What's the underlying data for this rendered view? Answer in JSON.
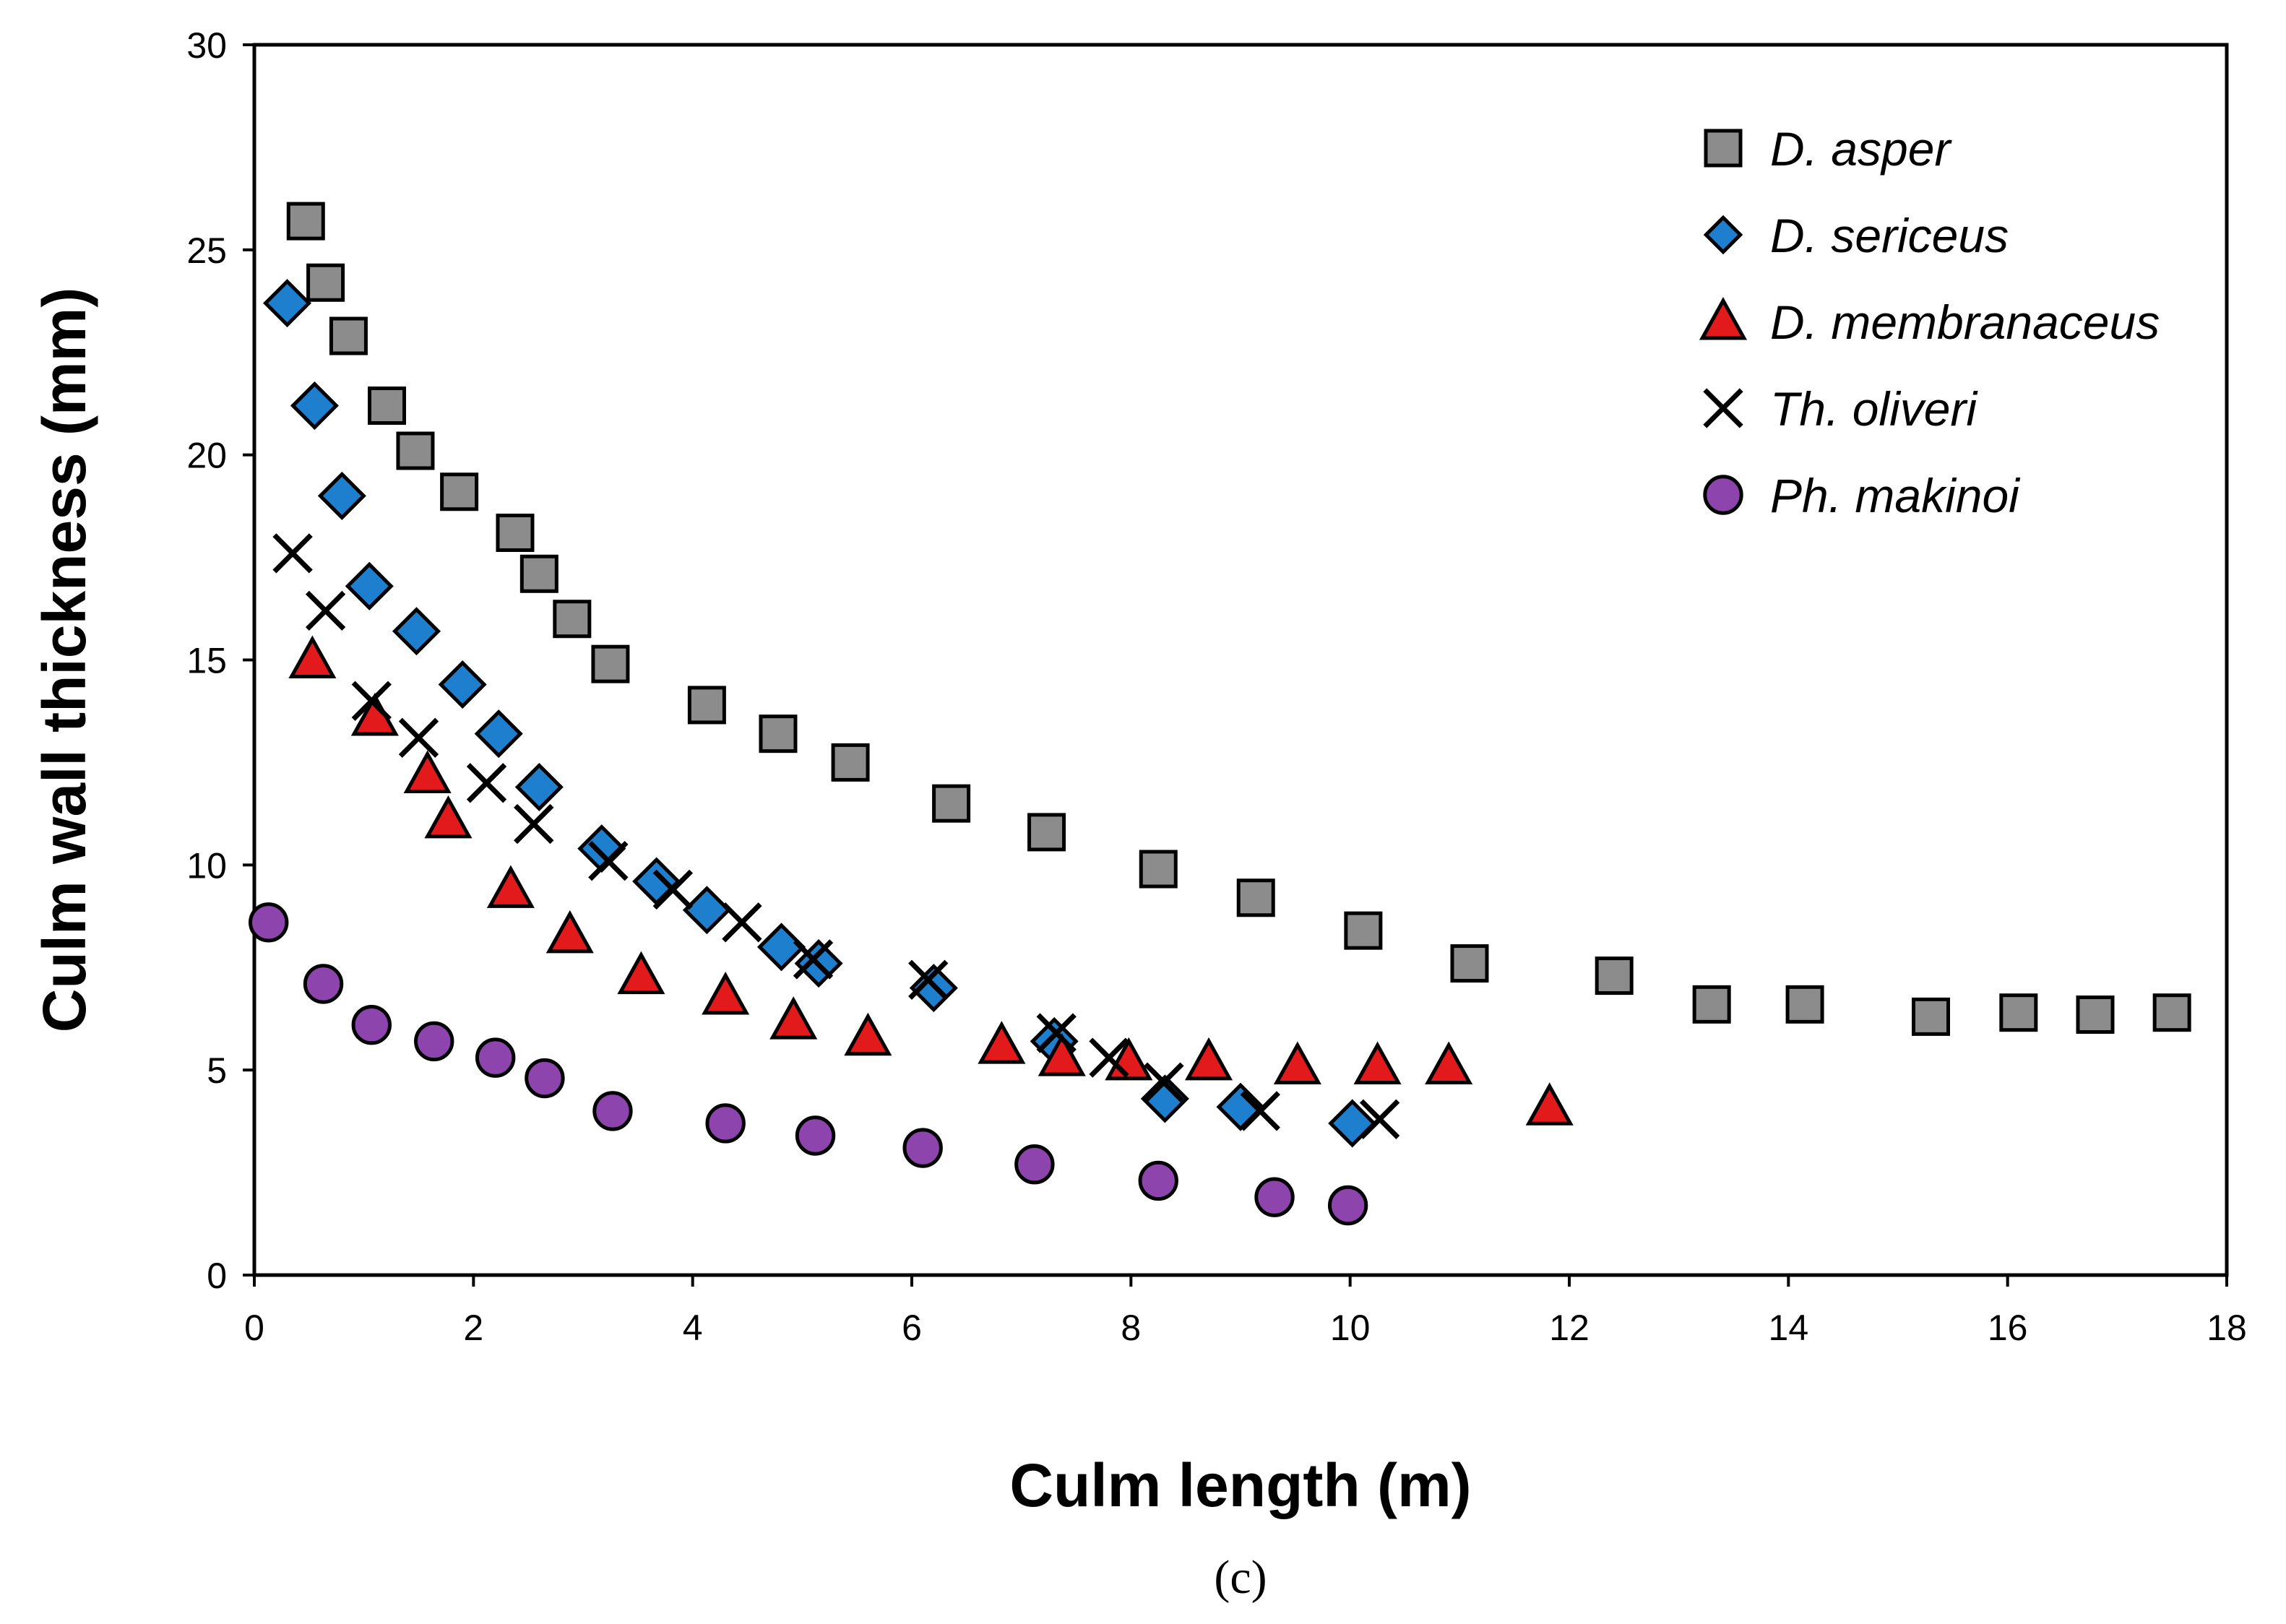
{
  "chart_data": {
    "type": "scatter",
    "title": "",
    "caption": "(c)",
    "xlabel": "Culm length (m)",
    "ylabel": "Culm wall thickness (mm)",
    "xlim": [
      0,
      18
    ],
    "ylim": [
      0,
      30
    ],
    "xticks": [
      0,
      2,
      4,
      6,
      8,
      10,
      12,
      14,
      16,
      18
    ],
    "yticks": [
      0,
      5,
      10,
      15,
      20,
      25,
      30
    ],
    "grid": false,
    "legend_position": "top-right",
    "series": [
      {
        "name": "D. asper",
        "marker": "square",
        "color": "#8c8c8c",
        "points": [
          [
            0.47,
            25.7
          ],
          [
            0.65,
            24.2
          ],
          [
            0.86,
            22.9
          ],
          [
            1.21,
            21.2
          ],
          [
            1.47,
            20.1
          ],
          [
            1.87,
            19.1
          ],
          [
            2.38,
            18.1
          ],
          [
            2.6,
            17.1
          ],
          [
            2.9,
            16.0
          ],
          [
            3.25,
            14.9
          ],
          [
            4.13,
            13.9
          ],
          [
            4.78,
            13.2
          ],
          [
            5.44,
            12.5
          ],
          [
            6.36,
            11.5
          ],
          [
            7.23,
            10.8
          ],
          [
            8.25,
            9.9
          ],
          [
            9.14,
            9.2
          ],
          [
            10.12,
            8.4
          ],
          [
            11.09,
            7.6
          ],
          [
            12.41,
            7.3
          ],
          [
            13.3,
            6.6
          ],
          [
            14.15,
            6.6
          ],
          [
            15.3,
            6.3
          ],
          [
            16.1,
            6.4
          ],
          [
            16.8,
            6.35
          ],
          [
            17.5,
            6.4
          ]
        ]
      },
      {
        "name": "D. sericeus",
        "marker": "diamond",
        "color": "#1f7fcf",
        "points": [
          [
            0.3,
            23.7
          ],
          [
            0.55,
            21.2
          ],
          [
            0.8,
            19.0
          ],
          [
            1.05,
            16.8
          ],
          [
            1.48,
            15.7
          ],
          [
            1.9,
            14.4
          ],
          [
            2.23,
            13.2
          ],
          [
            2.6,
            11.9
          ],
          [
            3.17,
            10.4
          ],
          [
            3.67,
            9.6
          ],
          [
            4.13,
            8.9
          ],
          [
            4.81,
            8.0
          ],
          [
            5.15,
            7.6
          ],
          [
            6.2,
            7.0
          ],
          [
            7.3,
            5.7
          ],
          [
            8.31,
            4.3
          ],
          [
            9.0,
            4.1
          ],
          [
            10.02,
            3.7
          ]
        ]
      },
      {
        "name": "D. membranaceus",
        "marker": "triangle",
        "color": "#e31a1c",
        "points": [
          [
            0.53,
            15.0
          ],
          [
            1.1,
            13.6
          ],
          [
            1.58,
            12.2
          ],
          [
            1.77,
            11.1
          ],
          [
            2.34,
            9.4
          ],
          [
            2.88,
            8.3
          ],
          [
            3.53,
            7.3
          ],
          [
            4.3,
            6.8
          ],
          [
            4.92,
            6.2
          ],
          [
            5.6,
            5.8
          ],
          [
            6.82,
            5.6
          ],
          [
            7.37,
            5.3
          ],
          [
            7.98,
            5.2
          ],
          [
            8.71,
            5.2
          ],
          [
            9.52,
            5.1
          ],
          [
            10.25,
            5.1
          ],
          [
            10.9,
            5.1
          ],
          [
            11.82,
            4.1
          ]
        ]
      },
      {
        "name": "Th. oliveri",
        "marker": "x",
        "color": "#000000",
        "points": [
          [
            0.35,
            17.6
          ],
          [
            0.65,
            16.2
          ],
          [
            1.07,
            14.0
          ],
          [
            1.5,
            13.1
          ],
          [
            2.12,
            12.0
          ],
          [
            2.55,
            11.0
          ],
          [
            3.23,
            10.1
          ],
          [
            3.82,
            9.4
          ],
          [
            4.45,
            8.6
          ],
          [
            5.1,
            7.7
          ],
          [
            6.15,
            7.2
          ],
          [
            7.32,
            5.9
          ],
          [
            7.8,
            5.3
          ],
          [
            8.3,
            4.7
          ],
          [
            9.18,
            4.0
          ],
          [
            10.27,
            3.8
          ]
        ]
      },
      {
        "name": "Ph. makinoi",
        "marker": "circle",
        "color": "#8e44ad",
        "points": [
          [
            0.13,
            8.6
          ],
          [
            0.63,
            7.1
          ],
          [
            1.07,
            6.1
          ],
          [
            1.64,
            5.7
          ],
          [
            2.2,
            5.3
          ],
          [
            2.65,
            4.8
          ],
          [
            3.27,
            4.0
          ],
          [
            4.3,
            3.7
          ],
          [
            5.12,
            3.4
          ],
          [
            6.1,
            3.1
          ],
          [
            7.12,
            2.7
          ],
          [
            8.25,
            2.3
          ],
          [
            9.31,
            1.9
          ],
          [
            9.98,
            1.7
          ]
        ]
      }
    ]
  }
}
